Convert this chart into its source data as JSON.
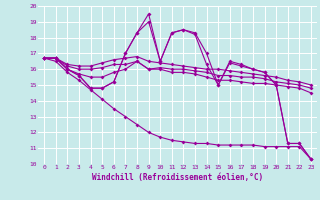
{
  "xlabel": "Windchill (Refroidissement éolien,°C)",
  "bg_color": "#c8eaea",
  "line_color": "#990099",
  "grid_color": "#ffffff",
  "xmin": 0,
  "xmax": 23,
  "ymin": 10,
  "ymax": 20,
  "series": [
    [
      16.7,
      16.7,
      16.0,
      15.6,
      14.8,
      14.8,
      15.2,
      17.0,
      18.3,
      19.5,
      16.5,
      18.3,
      18.5,
      18.3,
      17.0,
      15.0,
      16.5,
      16.3,
      16.0,
      15.8,
      15.0,
      11.3,
      11.3,
      10.3
    ],
    [
      16.7,
      16.7,
      16.0,
      15.6,
      14.8,
      14.8,
      15.2,
      17.0,
      18.3,
      19.0,
      16.5,
      18.3,
      18.5,
      18.2,
      16.3,
      15.0,
      16.4,
      16.2,
      16.0,
      15.8,
      15.0,
      11.3,
      11.3,
      10.3
    ],
    [
      16.7,
      16.7,
      16.0,
      15.7,
      15.5,
      15.5,
      15.8,
      16.0,
      16.5,
      16.0,
      16.0,
      15.8,
      15.8,
      15.7,
      15.5,
      15.3,
      15.3,
      15.2,
      15.1,
      15.1,
      15.0,
      14.9,
      14.8,
      14.5
    ],
    [
      16.7,
      16.7,
      16.2,
      16.0,
      16.0,
      16.1,
      16.3,
      16.3,
      16.5,
      16.0,
      16.1,
      16.0,
      16.0,
      15.9,
      15.8,
      15.6,
      15.6,
      15.5,
      15.5,
      15.4,
      15.2,
      15.1,
      15.0,
      14.8
    ],
    [
      16.7,
      16.7,
      16.3,
      16.2,
      16.2,
      16.4,
      16.6,
      16.7,
      16.8,
      16.5,
      16.4,
      16.3,
      16.2,
      16.1,
      16.0,
      16.0,
      15.9,
      15.8,
      15.7,
      15.6,
      15.5,
      15.3,
      15.2,
      15.0
    ],
    [
      16.7,
      16.5,
      15.8,
      15.3,
      14.7,
      14.1,
      13.5,
      13.0,
      12.5,
      12.0,
      11.7,
      11.5,
      11.4,
      11.3,
      11.3,
      11.2,
      11.2,
      11.2,
      11.2,
      11.1,
      11.1,
      11.1,
      11.1,
      10.3
    ]
  ]
}
